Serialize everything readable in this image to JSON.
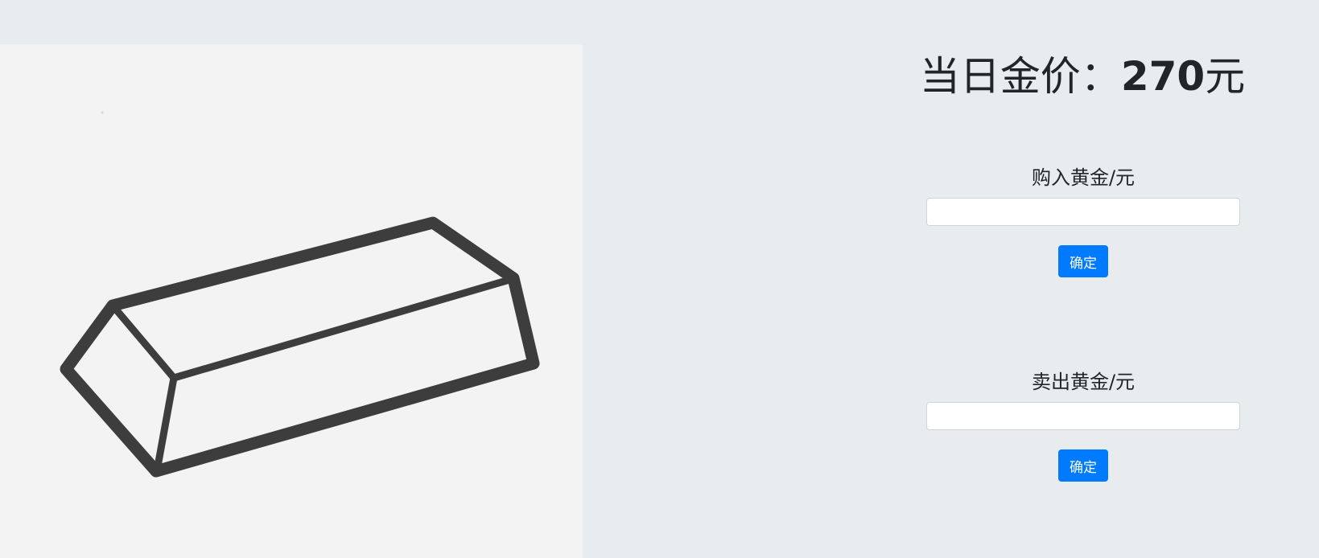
{
  "header": {
    "title_prefix": "当日金价：",
    "price": "270",
    "unit": "元"
  },
  "buy": {
    "label": "购入黄金/元",
    "input_value": "",
    "button_label": "确定"
  },
  "sell": {
    "label": "卖出黄金/元",
    "input_value": "",
    "button_label": "确定"
  },
  "image": {
    "icon": "gold-bar-icon"
  },
  "colors": {
    "background": "#e8ecef",
    "panel": "#f3f3f3",
    "accent": "#007bff",
    "text": "#212529",
    "outline": "#3d3d3d"
  }
}
